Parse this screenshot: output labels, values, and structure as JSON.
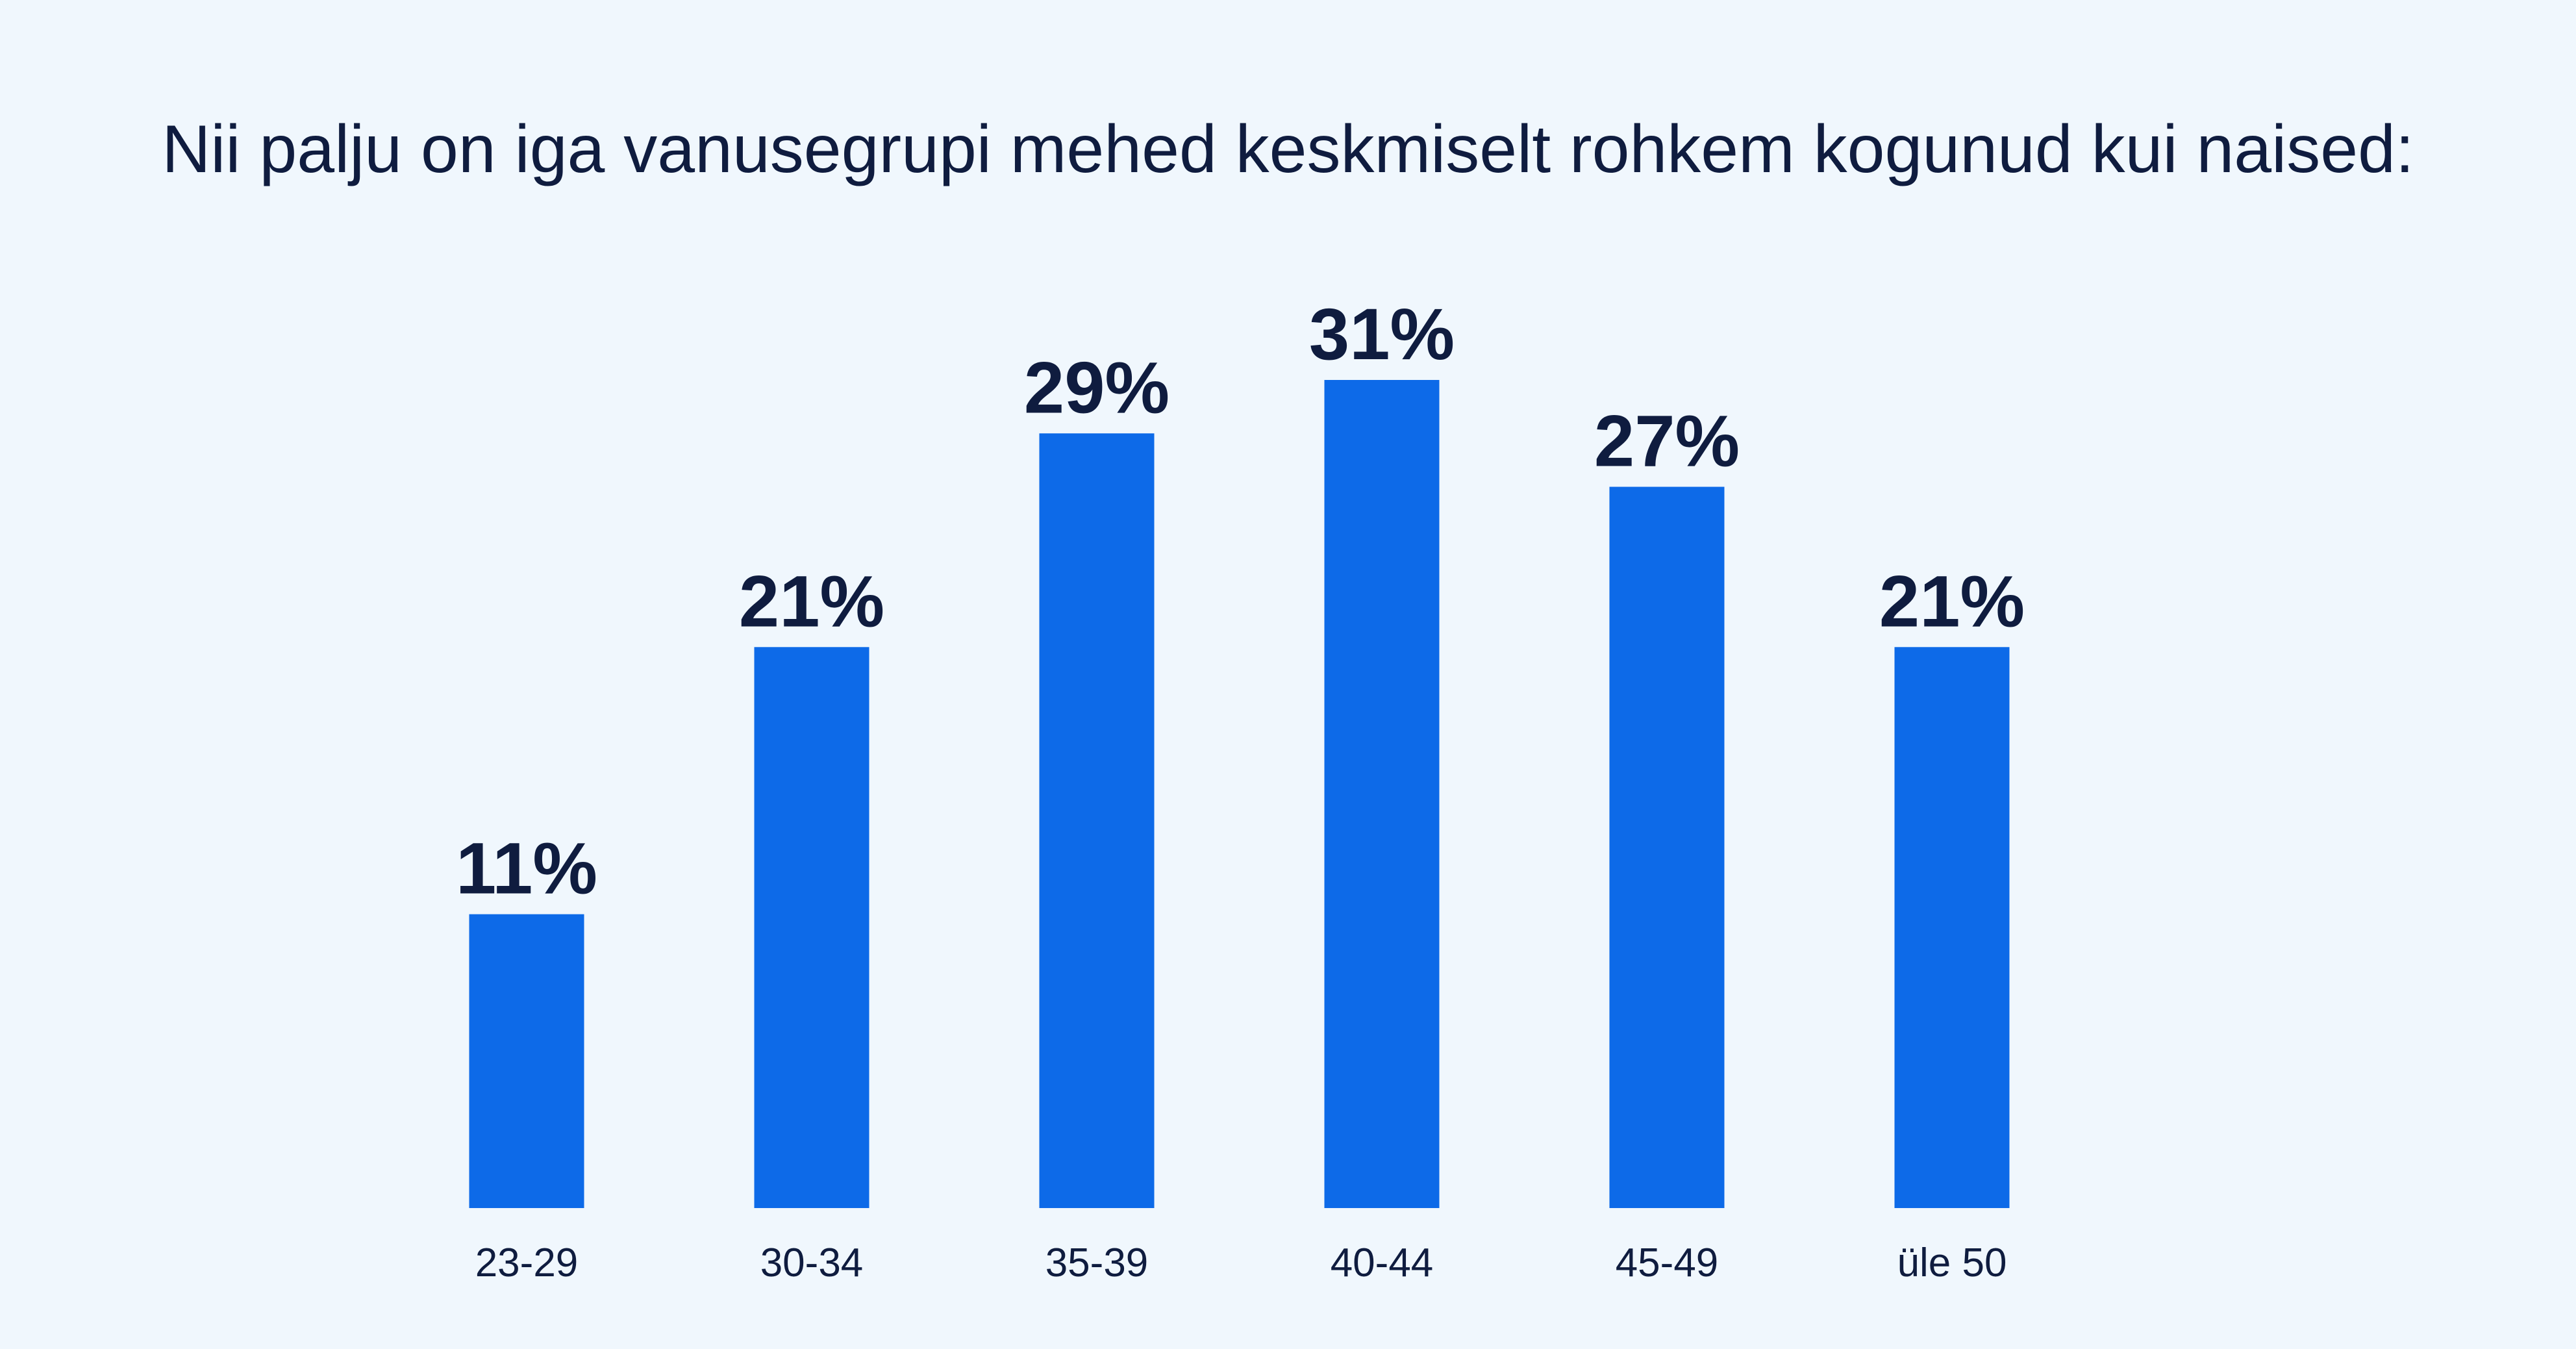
{
  "title": "Nii palju on iga vanusegrupi mehed keskmiselt rohkem kogunud kui naised:",
  "colors": {
    "background": "#f0f7fd",
    "bar": "#0d6ae8",
    "text": "#0f1c3f"
  },
  "chart_data": {
    "type": "bar",
    "title": "Nii palju on iga vanusegrupi mehed keskmiselt rohkem kogunud kui naised:",
    "categories": [
      "23-29",
      "30-34",
      "35-39",
      "40-44",
      "45-49",
      "üle 50"
    ],
    "values": [
      11,
      21,
      29,
      31,
      27,
      21
    ],
    "value_labels": [
      "11%",
      "21%",
      "29%",
      "31%",
      "27%",
      "21%"
    ],
    "unit": "%",
    "xlabel": "",
    "ylabel": "",
    "ylim": [
      0,
      31
    ],
    "grid": false,
    "legend": "none"
  }
}
